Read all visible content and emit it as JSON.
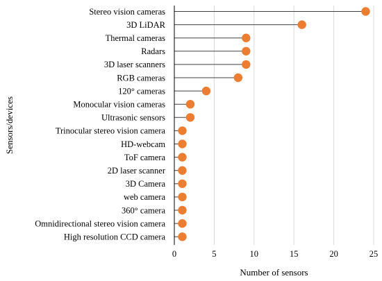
{
  "chart_data": {
    "type": "lollipop",
    "orientation": "horizontal",
    "xlabel": "Number of sensors",
    "ylabel": "Sensors/devices",
    "xlim": [
      0,
      25
    ],
    "xticks": [
      "0",
      "5",
      "10",
      "15",
      "20",
      "25"
    ],
    "grid": "vertical",
    "marker_color": "#ed7d31",
    "stem_color": "#404040",
    "categories": [
      "Stereo vision cameras",
      "3D LiDAR",
      "Thermal cameras",
      "Radars",
      "3D laser scanners",
      "RGB cameras",
      "120° cameras",
      "Monocular vision cameras",
      "Ultrasonic sensors",
      "Trinocular stereo vision camera",
      "HD-webcam",
      "ToF camera",
      "2D laser scanner",
      "3D Camera",
      "web camera",
      "360° camera",
      "Omnidirectional stereo vision camera",
      "High resolution CCD camera"
    ],
    "values": [
      24,
      16,
      9,
      9,
      9,
      8,
      4,
      2,
      2,
      1,
      1,
      1,
      1,
      1,
      1,
      1,
      1,
      1
    ]
  }
}
